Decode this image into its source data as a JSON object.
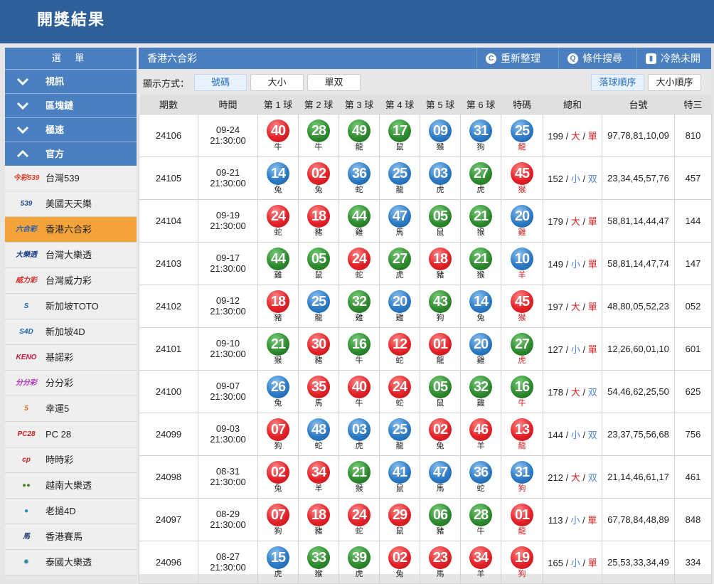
{
  "header": {
    "title": "開獎結果"
  },
  "sidebar": {
    "menu_title": "選 單",
    "categories": [
      {
        "label": "視訊",
        "state": "collapsed"
      },
      {
        "label": "區塊鏈",
        "state": "collapsed"
      },
      {
        "label": "極速",
        "state": "collapsed"
      },
      {
        "label": "官方",
        "state": "expanded"
      }
    ],
    "items": [
      {
        "label": "台灣539",
        "icon": "今彩539",
        "color": "#e8402a"
      },
      {
        "label": "美國天天樂",
        "icon": "539",
        "color": "#1d4f9a"
      },
      {
        "label": "香港六合彩",
        "icon": "六合彩",
        "color": "#2a5db0",
        "active": true
      },
      {
        "label": "台灣大樂透",
        "icon": "大樂透",
        "color": "#1a3f8a"
      },
      {
        "label": "台灣威力彩",
        "icon": "威力彩",
        "color": "#d42b2b"
      },
      {
        "label": "新加坡TOTO",
        "icon": "S",
        "color": "#1d64b0"
      },
      {
        "label": "新加坡4D",
        "icon": "S4D",
        "color": "#1d64b0"
      },
      {
        "label": "基諾彩",
        "icon": "KENO",
        "color": "#c41e3a"
      },
      {
        "label": "分分彩",
        "icon": "分分彩",
        "color": "#b03cc0"
      },
      {
        "label": "幸運5",
        "icon": "5",
        "color": "#e46a1a"
      },
      {
        "label": "PC 28",
        "icon": "PC28",
        "color": "#d42020"
      },
      {
        "label": "時時彩",
        "icon": "cp",
        "color": "#d42020"
      },
      {
        "label": "越南大樂透",
        "icon": "●●",
        "color": "#5a8a3a"
      },
      {
        "label": "老撾4D",
        "icon": "●",
        "color": "#1d8ad0"
      },
      {
        "label": "香港賽馬",
        "icon": "馬",
        "color": "#2a3f7a"
      },
      {
        "label": "泰國大樂透",
        "icon": "✹",
        "color": "#2a8aa0"
      }
    ]
  },
  "main": {
    "title": "香港六合彩",
    "actions": [
      {
        "label": "重新整理",
        "icon": "refresh-icon"
      },
      {
        "label": "條件搜尋",
        "icon": "search-icon"
      },
      {
        "label": "冷熱未開",
        "icon": "bar-chart-icon"
      }
    ],
    "display_label": "顯示方式：",
    "display_modes": [
      {
        "label": "號碼",
        "selected": true
      },
      {
        "label": "大小"
      },
      {
        "label": "單双"
      }
    ],
    "sort_modes": [
      {
        "label": "落球順序",
        "selected": true
      },
      {
        "label": "大小順序"
      }
    ],
    "columns": [
      "期數",
      "時間",
      "第 1 球",
      "第 2 球",
      "第 3 球",
      "第 4 球",
      "第 5 球",
      "第 6 球",
      "特碼",
      "總和",
      "台號",
      "特三"
    ],
    "ball_colors": {
      "r": "#e52228",
      "g": "#2e8c2e",
      "b": "#2c7bc6"
    },
    "rows": [
      {
        "period": "24106",
        "date": "09-24",
        "time": "21:30:00",
        "balls": [
          [
            "40",
            "牛",
            "r"
          ],
          [
            "28",
            "牛",
            "g"
          ],
          [
            "49",
            "龍",
            "g"
          ],
          [
            "17",
            "鼠",
            "g"
          ],
          [
            "09",
            "猴",
            "b"
          ],
          [
            "31",
            "狗",
            "b"
          ]
        ],
        "special": [
          "25",
          "龍",
          "b"
        ],
        "sum": "199",
        "size": "大",
        "parity": "單",
        "tai": "97,78,81,10,09",
        "te3": "810"
      },
      {
        "period": "24105",
        "date": "09-21",
        "time": "21:30:00",
        "balls": [
          [
            "14",
            "兔",
            "b"
          ],
          [
            "02",
            "兔",
            "r"
          ],
          [
            "36",
            "蛇",
            "b"
          ],
          [
            "25",
            "龍",
            "b"
          ],
          [
            "03",
            "虎",
            "b"
          ],
          [
            "27",
            "虎",
            "g"
          ]
        ],
        "special": [
          "45",
          "猴",
          "r"
        ],
        "sum": "152",
        "size": "小",
        "parity": "双",
        "tai": "23,34,45,57,76",
        "te3": "457"
      },
      {
        "period": "24104",
        "date": "09-19",
        "time": "21:30:00",
        "balls": [
          [
            "24",
            "蛇",
            "r"
          ],
          [
            "18",
            "豬",
            "r"
          ],
          [
            "44",
            "雞",
            "g"
          ],
          [
            "47",
            "馬",
            "b"
          ],
          [
            "05",
            "鼠",
            "g"
          ],
          [
            "21",
            "猴",
            "g"
          ]
        ],
        "special": [
          "20",
          "雞",
          "b"
        ],
        "sum": "179",
        "size": "大",
        "parity": "單",
        "tai": "58,81,14,44,47",
        "te3": "144"
      },
      {
        "period": "24103",
        "date": "09-17",
        "time": "21:30:00",
        "balls": [
          [
            "44",
            "雞",
            "g"
          ],
          [
            "05",
            "鼠",
            "g"
          ],
          [
            "24",
            "蛇",
            "r"
          ],
          [
            "27",
            "虎",
            "g"
          ],
          [
            "18",
            "豬",
            "r"
          ],
          [
            "21",
            "猴",
            "g"
          ]
        ],
        "special": [
          "10",
          "羊",
          "b"
        ],
        "sum": "149",
        "size": "小",
        "parity": "單",
        "tai": "58,81,14,47,74",
        "te3": "147"
      },
      {
        "period": "24102",
        "date": "09-12",
        "time": "21:30:00",
        "balls": [
          [
            "18",
            "豬",
            "r"
          ],
          [
            "25",
            "龍",
            "b"
          ],
          [
            "32",
            "雞",
            "g"
          ],
          [
            "20",
            "雞",
            "b"
          ],
          [
            "43",
            "狗",
            "g"
          ],
          [
            "14",
            "兔",
            "b"
          ]
        ],
        "special": [
          "45",
          "猴",
          "r"
        ],
        "sum": "197",
        "size": "大",
        "parity": "單",
        "tai": "48,80,05,52,23",
        "te3": "052"
      },
      {
        "period": "24101",
        "date": "09-10",
        "time": "21:30:00",
        "balls": [
          [
            "21",
            "猴",
            "g"
          ],
          [
            "30",
            "豬",
            "r"
          ],
          [
            "16",
            "牛",
            "g"
          ],
          [
            "12",
            "蛇",
            "r"
          ],
          [
            "01",
            "龍",
            "r"
          ],
          [
            "20",
            "雞",
            "b"
          ]
        ],
        "special": [
          "27",
          "虎",
          "g"
        ],
        "sum": "127",
        "size": "小",
        "parity": "單",
        "tai": "12,26,60,01,10",
        "te3": "601"
      },
      {
        "period": "24100",
        "date": "09-07",
        "time": "21:30:00",
        "balls": [
          [
            "26",
            "兔",
            "b"
          ],
          [
            "35",
            "馬",
            "r"
          ],
          [
            "40",
            "牛",
            "r"
          ],
          [
            "24",
            "蛇",
            "r"
          ],
          [
            "05",
            "鼠",
            "g"
          ],
          [
            "32",
            "雞",
            "g"
          ]
        ],
        "special": [
          "16",
          "牛",
          "g"
        ],
        "sum": "178",
        "size": "大",
        "parity": "双",
        "tai": "54,46,62,25,50",
        "te3": "625"
      },
      {
        "period": "24099",
        "date": "09-03",
        "time": "21:30:00",
        "balls": [
          [
            "07",
            "狗",
            "r"
          ],
          [
            "48",
            "蛇",
            "b"
          ],
          [
            "03",
            "虎",
            "b"
          ],
          [
            "25",
            "龍",
            "b"
          ],
          [
            "02",
            "兔",
            "r"
          ],
          [
            "46",
            "羊",
            "r"
          ]
        ],
        "special": [
          "13",
          "龍",
          "r"
        ],
        "sum": "144",
        "size": "小",
        "parity": "双",
        "tai": "23,37,75,56,68",
        "te3": "756"
      },
      {
        "period": "24098",
        "date": "08-31",
        "time": "21:30:00",
        "balls": [
          [
            "02",
            "兔",
            "r"
          ],
          [
            "34",
            "羊",
            "r"
          ],
          [
            "21",
            "猴",
            "g"
          ],
          [
            "41",
            "鼠",
            "b"
          ],
          [
            "47",
            "馬",
            "b"
          ],
          [
            "36",
            "蛇",
            "b"
          ]
        ],
        "special": [
          "31",
          "狗",
          "b"
        ],
        "sum": "212",
        "size": "大",
        "parity": "双",
        "tai": "21,14,46,61,17",
        "te3": "461"
      },
      {
        "period": "24097",
        "date": "08-29",
        "time": "21:30:00",
        "balls": [
          [
            "07",
            "狗",
            "r"
          ],
          [
            "18",
            "豬",
            "r"
          ],
          [
            "24",
            "蛇",
            "r"
          ],
          [
            "29",
            "鼠",
            "r"
          ],
          [
            "06",
            "豬",
            "g"
          ],
          [
            "28",
            "牛",
            "g"
          ]
        ],
        "special": [
          "01",
          "龍",
          "r"
        ],
        "sum": "113",
        "size": "小",
        "parity": "單",
        "tai": "67,78,84,48,89",
        "te3": "848"
      },
      {
        "period": "24096",
        "date": "08-27",
        "time": "21:30:00",
        "balls": [
          [
            "15",
            "虎",
            "b"
          ],
          [
            "33",
            "猴",
            "g"
          ],
          [
            "39",
            "虎",
            "g"
          ],
          [
            "02",
            "兔",
            "r"
          ],
          [
            "23",
            "馬",
            "r"
          ],
          [
            "34",
            "羊",
            "r"
          ]
        ],
        "special": [
          "19",
          "狗",
          "r"
        ],
        "sum": "165",
        "size": "小",
        "parity": "單",
        "tai": "25,53,33,34,49",
        "te3": "334"
      }
    ]
  }
}
